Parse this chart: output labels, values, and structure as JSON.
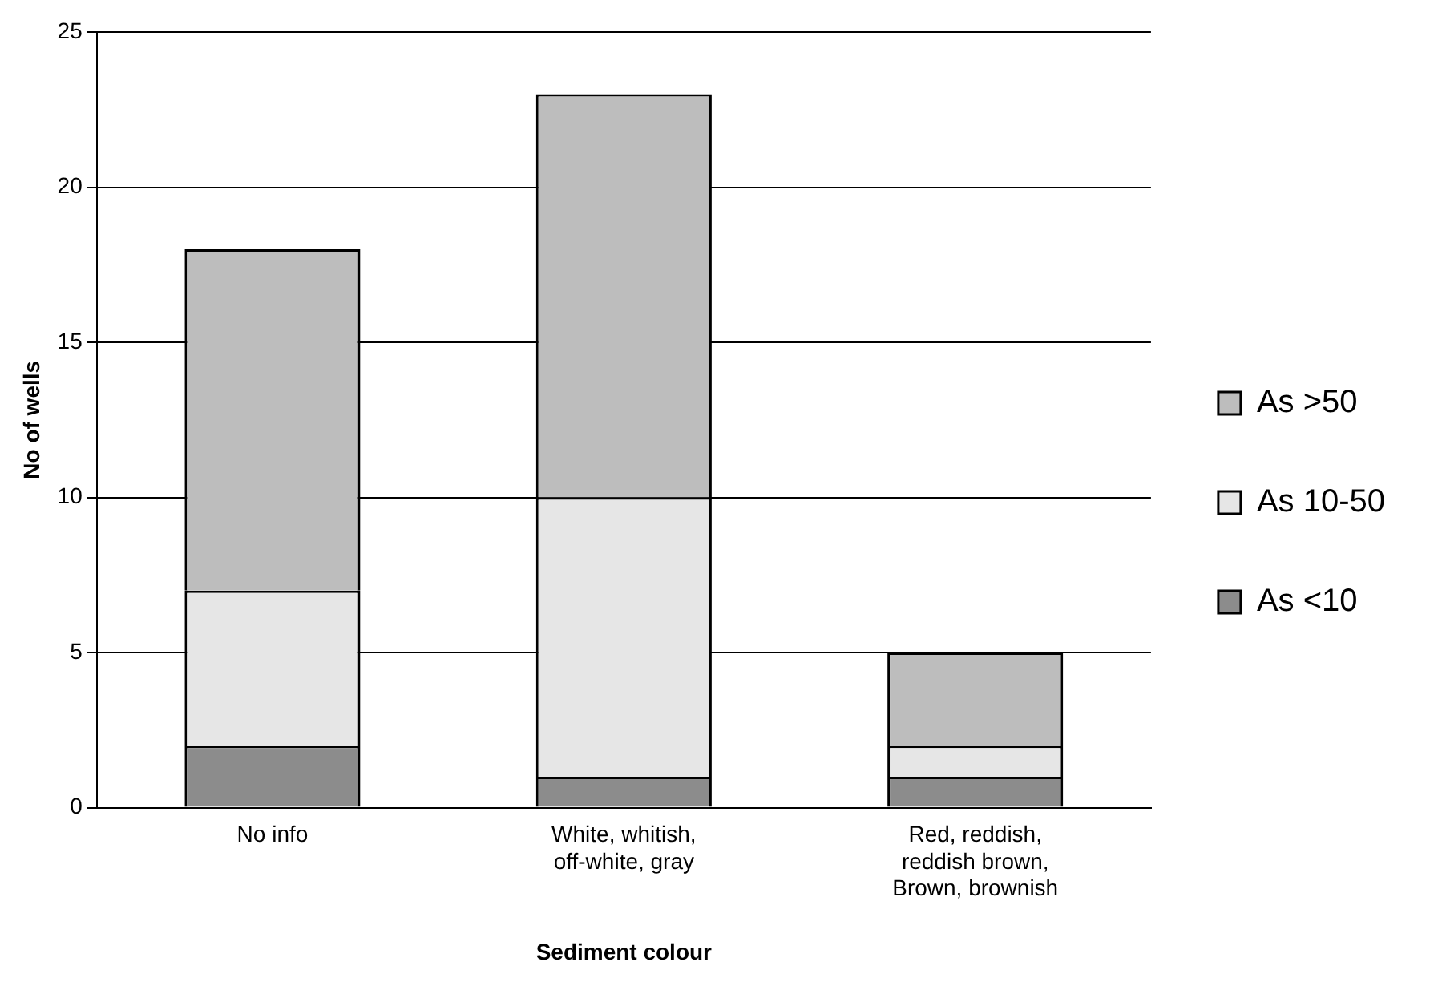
{
  "chart_data": {
    "type": "bar",
    "stacked": true,
    "xlabel": "Sediment colour",
    "ylabel": "No of wells",
    "categories": [
      "No info",
      "White, whitish, off-white, gray",
      "Red, reddish, reddish brown, Brown, brownish"
    ],
    "series": [
      {
        "name": "As <10",
        "color": "#8c8c8c",
        "values": [
          2,
          1,
          1
        ]
      },
      {
        "name": "As 10-50",
        "color": "#e6e6e6",
        "values": [
          5,
          9,
          1
        ]
      },
      {
        "name": "As >50",
        "color": "#bdbdbd",
        "values": [
          11,
          13,
          3
        ]
      }
    ],
    "ylim": [
      0,
      25
    ],
    "yticks": [
      0,
      5,
      10,
      15,
      20,
      25
    ],
    "grid": "y",
    "legend": "right"
  }
}
